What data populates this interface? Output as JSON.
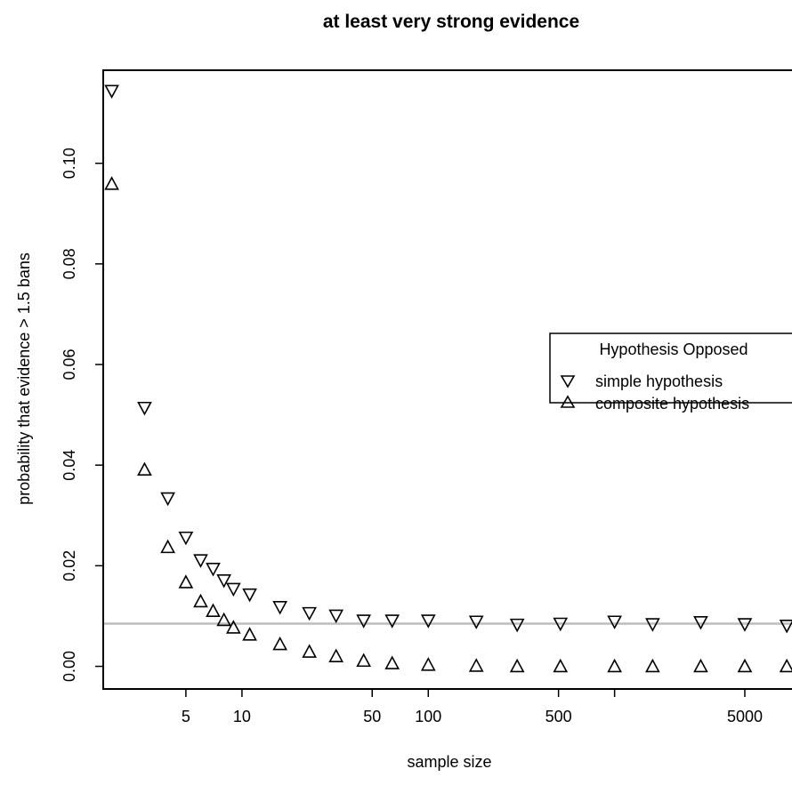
{
  "chart_data": {
    "type": "scatter",
    "title": "at least very strong evidence",
    "xlabel": "sample size",
    "ylabel": "probability that evidence > 1.5 bans",
    "x_scale": "log",
    "xlim": [
      1.8,
      10000
    ],
    "ylim": [
      -0.0045,
      0.1185
    ],
    "x_ticks": [
      5,
      10,
      50,
      100,
      500,
      5000
    ],
    "x_minor_ticks": [
      1000
    ],
    "y_ticks": [
      0.0,
      0.02,
      0.04,
      0.06,
      0.08,
      0.1
    ],
    "y_tick_labels": [
      "0.00",
      "0.02",
      "0.04",
      "0.06",
      "0.08",
      "0.10"
    ],
    "reference_line": {
      "y": 0.0085,
      "color": "#bdbdbd"
    },
    "legend": {
      "title": "Hypothesis Opposed",
      "position": "right",
      "entries": [
        "simple hypothesis",
        "composite hypothesis"
      ]
    },
    "series": [
      {
        "name": "simple hypothesis",
        "marker": "triangle-down",
        "x": [
          2,
          3,
          4,
          5,
          6,
          7,
          8,
          9,
          11,
          16,
          23,
          32,
          45,
          64,
          100,
          181,
          300,
          512,
          1000,
          1600,
          2900,
          5000,
          8400
        ],
        "y": [
          0.1143,
          0.0513,
          0.0333,
          0.0255,
          0.021,
          0.0193,
          0.017,
          0.0153,
          0.0142,
          0.0117,
          0.0105,
          0.01,
          0.009,
          0.009,
          0.009,
          0.0088,
          0.0082,
          0.0084,
          0.0088,
          0.0083,
          0.0087,
          0.0083,
          0.008
        ]
      },
      {
        "name": "composite hypothesis",
        "marker": "triangle-up",
        "x": [
          2,
          3,
          4,
          5,
          6,
          7,
          8,
          9,
          11,
          16,
          23,
          32,
          45,
          64,
          100,
          181,
          300,
          512,
          1000,
          1600,
          2900,
          5000,
          8400
        ],
        "y": [
          0.096,
          0.0392,
          0.0238,
          0.0168,
          0.013,
          0.0111,
          0.0093,
          0.0078,
          0.0064,
          0.0045,
          0.003,
          0.0021,
          0.0012,
          0.0007,
          0.0004,
          0.0002,
          0.0001,
          0.0001,
          0.0001,
          0.0001,
          0.0001,
          0.0001,
          0.0001
        ]
      }
    ]
  }
}
